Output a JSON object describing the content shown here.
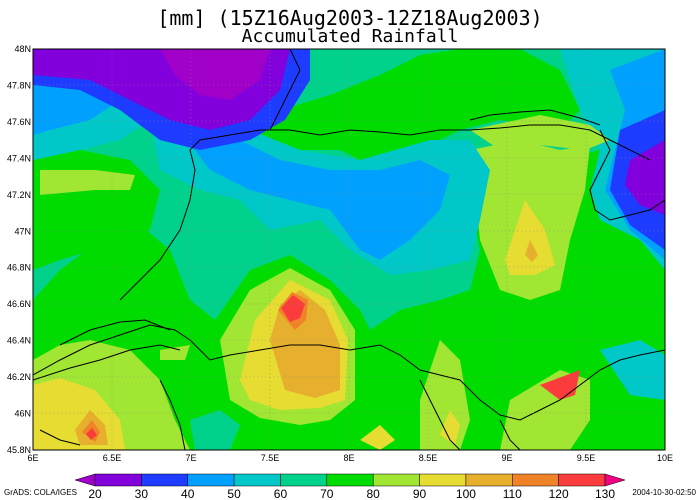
{
  "title": {
    "line1": "[mm] (15Z16Aug2003-12Z18Aug2003)",
    "line2": "Accumulated Rainfall"
  },
  "map": {
    "lon_ticks": [
      "6E",
      "6.5E",
      "7E",
      "7.5E",
      "8E",
      "8.5E",
      "9E",
      "9.5E",
      "10E"
    ],
    "lat_ticks": [
      "45.8N",
      "46N",
      "46.2N",
      "46.4N",
      "46.6N",
      "46.8N",
      "47N",
      "47.2N",
      "47.4N",
      "47.6N",
      "47.8N",
      "48N"
    ],
    "lon_range": [
      6,
      10
    ],
    "lat_range": [
      45.8,
      48
    ],
    "colors": {
      "lt20": "#a000c8",
      "20_30": "#8200dc",
      "30_40": "#1e3cff",
      "40_50": "#00a0ff",
      "50_60": "#00c8c8",
      "60_70": "#00d28c",
      "70_80": "#00dc00",
      "80_90": "#a0e632",
      "90_100": "#e6dc32",
      "100_110": "#e6af2d",
      "110_120": "#f08228",
      "120_130": "#fa3c3c",
      "gt130": "#f00082"
    }
  },
  "colorbar": {
    "labels": [
      "20",
      "30",
      "40",
      "50",
      "60",
      "70",
      "80",
      "90",
      "100",
      "110",
      "120",
      "130"
    ],
    "colors": [
      "#a000c8",
      "#8200dc",
      "#1e3cff",
      "#00a0ff",
      "#00c8c8",
      "#00d28c",
      "#00dc00",
      "#a0e632",
      "#e6dc32",
      "#e6af2d",
      "#f08228",
      "#fa3c3c",
      "#f00082"
    ]
  },
  "credits": {
    "left": "GrADS: COLA/IGES",
    "right": "2004-10-30-02:50"
  }
}
